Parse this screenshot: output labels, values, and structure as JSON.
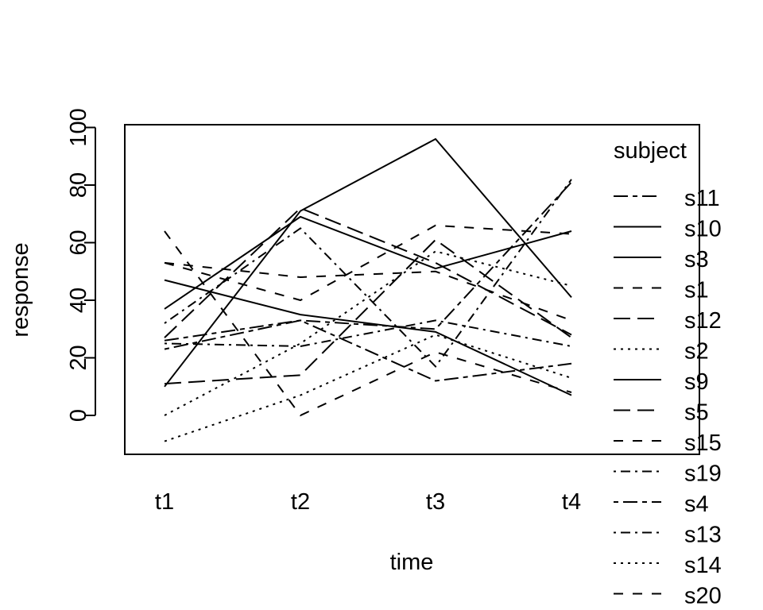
{
  "chart_data": {
    "type": "line",
    "xlabel": "time",
    "ylabel": "response",
    "categories": [
      "t1",
      "t2",
      "t3",
      "t4"
    ],
    "ylim": [
      -13,
      101
    ],
    "yticks": [
      0,
      20,
      40,
      60,
      80,
      100
    ],
    "legend_title": "subject",
    "legend_placement": "right",
    "series": [
      {
        "name": "s11",
        "dash": "dashdot",
        "values": [
          26,
          33,
          30,
          81
        ]
      },
      {
        "name": "s10",
        "dash": "solid",
        "values": [
          47,
          35,
          29,
          7
        ]
      },
      {
        "name": "s3",
        "dash": "solid",
        "values": [
          37,
          69,
          51,
          64
        ]
      },
      {
        "name": "s1",
        "dash": "dashed",
        "values": [
          53,
          48,
          50,
          33
        ]
      },
      {
        "name": "s12",
        "dash": "longdash",
        "values": [
          11,
          14,
          61,
          27
        ]
      },
      {
        "name": "s2",
        "dash": "dotted",
        "values": [
          0,
          25,
          57,
          45
        ]
      },
      {
        "name": "s9",
        "dash": "solid",
        "values": [
          10,
          71,
          96,
          41
        ]
      },
      {
        "name": "s5",
        "dash": "longdash",
        "values": [
          27,
          72,
          53,
          28
        ]
      },
      {
        "name": "s15",
        "dash": "dashed",
        "values": [
          64,
          0,
          22,
          8
        ]
      },
      {
        "name": "s19",
        "dash": "dotdash",
        "values": [
          32,
          65,
          17,
          82
        ]
      },
      {
        "name": "s4",
        "dash": "twodash",
        "values": [
          23,
          33,
          12,
          18
        ]
      },
      {
        "name": "s13",
        "dash": "dotdash",
        "values": [
          25,
          24,
          33,
          24
        ]
      },
      {
        "name": "s14",
        "dash": "dotted",
        "values": [
          -9,
          7,
          28,
          13
        ]
      },
      {
        "name": "s20",
        "dash": "dashed",
        "values": [
          53,
          40,
          66,
          63
        ]
      }
    ]
  }
}
